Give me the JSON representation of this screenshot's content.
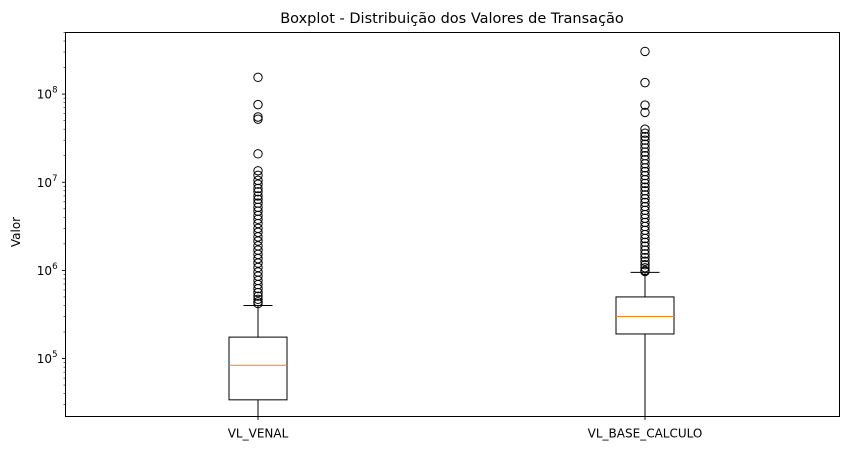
{
  "chart_data": {
    "type": "boxplot",
    "title": "Boxplot - Distribuição dos Valores de Transação",
    "ylabel": "Valor",
    "xlabel": "",
    "yscale": "log",
    "ylim": [
      22000,
      500000000
    ],
    "ytick_labels": [
      {
        "value": 100000,
        "base": "10",
        "exp": "5"
      },
      {
        "value": 1000000,
        "base": "10",
        "exp": "6"
      },
      {
        "value": 10000000,
        "base": "10",
        "exp": "7"
      },
      {
        "value": 100000000,
        "base": "10",
        "exp": "8"
      }
    ],
    "grid": false,
    "colors": {
      "box": "#000000",
      "median": "#ff7f0e",
      "flier": "#000000"
    },
    "series": [
      {
        "category": "VL_VENAL",
        "whisker_low": 22000,
        "q1": 34000,
        "median": 84000,
        "q3": 175000,
        "whisker_high": 400000,
        "outliers": [
          155000000,
          76000000,
          55000000,
          52000000,
          21000000,
          13500000,
          12000000,
          10500000,
          9500000,
          8500000,
          7800000,
          7000000,
          6400000,
          5800000,
          5200000,
          4700000,
          4200000,
          3800000,
          3400000,
          3000000,
          2700000,
          2400000,
          2150000,
          1900000,
          1700000,
          1520000,
          1360000,
          1210000,
          1080000,
          960000,
          860000,
          770000,
          690000,
          620000,
          560000,
          510000,
          470000,
          440000,
          420000
        ]
      },
      {
        "category": "VL_BASE_CALCULO",
        "whisker_low": 22000,
        "q1": 190000,
        "median": 300000,
        "q3": 500000,
        "whisker_high": 950000,
        "outliers": [
          305000000,
          135000000,
          75000000,
          62000000,
          40000000,
          36000000,
          33000000,
          30000000,
          27000000,
          24500000,
          22000000,
          20000000,
          18000000,
          16200000,
          14600000,
          13200000,
          11900000,
          10700000,
          9700000,
          8800000,
          8000000,
          7200000,
          6500000,
          5900000,
          5300000,
          4800000,
          4300000,
          3900000,
          3500000,
          3150000,
          2850000,
          2550000,
          2300000,
          2080000,
          1880000,
          1700000,
          1540000,
          1400000,
          1270000,
          1160000,
          1070000,
          1000000,
          970000
        ]
      }
    ]
  }
}
